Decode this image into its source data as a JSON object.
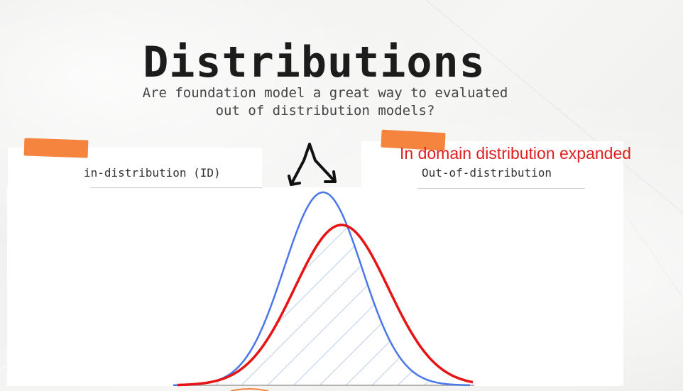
{
  "slide": {
    "title": "Distributions",
    "subtitle": "Are foundation model a great way to evaluated\nout of distribution models?"
  },
  "labels": {
    "in_distribution": "in-distribution (ID)",
    "out_of_distribution": "Out-of-distribution",
    "annotation": "In domain distribution expanded"
  },
  "colors": {
    "tape": "#f5843f",
    "id_curve": "#4a78e8",
    "ood_curve": "#e61414",
    "annotation": "#e02020",
    "hatch": "#9fb8e6"
  },
  "icons": {
    "arrows": "split-down-arrows-icon"
  }
}
